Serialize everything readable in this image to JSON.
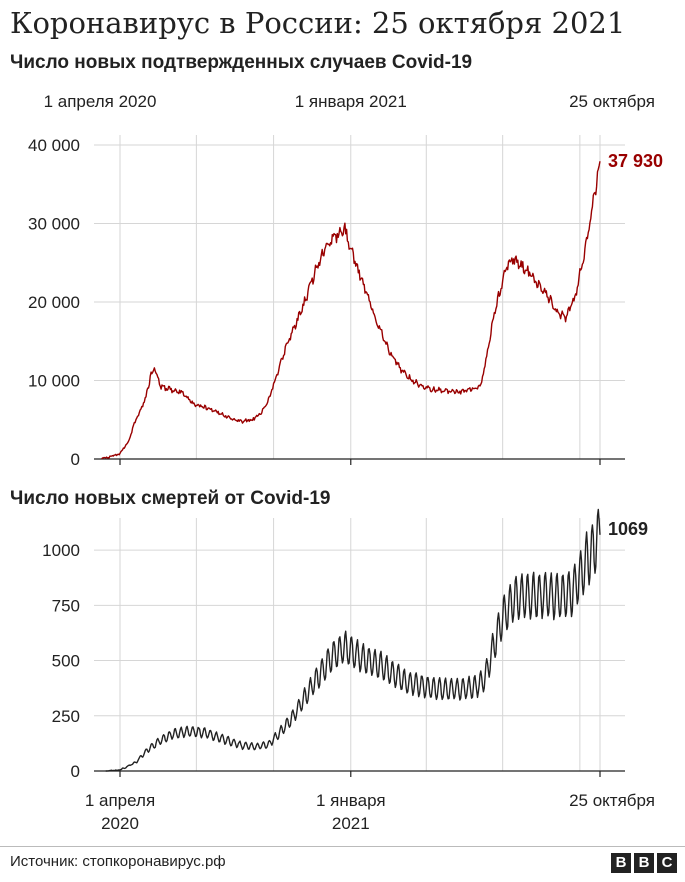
{
  "title": "Коронавирус в России: 25 октября 2021",
  "source": "Источник: стопкоронавирус.рф",
  "logo": "BBC",
  "chart_data": [
    {
      "type": "line",
      "title": "Число новых подтвержденных случаев Covid-19",
      "color": "#990000",
      "x_range": [
        "2020-03-01",
        "2021-10-25"
      ],
      "x_tick_labels": [
        {
          "date": "2020-04-01",
          "label": "1 апреля 2020"
        },
        {
          "date": "2021-01-01",
          "label": "1 января 2021"
        },
        {
          "date": "2021-10-25",
          "label": "25 октября"
        }
      ],
      "ylim": [
        0,
        40000
      ],
      "yticks": [
        0,
        10000,
        20000,
        30000,
        40000
      ],
      "ytick_labels": [
        "0",
        "10 000",
        "20 000",
        "30 000",
        "40 000"
      ],
      "grid": true,
      "series": [
        {
          "points": [
            [
              "2020-03-10",
              0
            ],
            [
              "2020-03-25",
              400
            ],
            [
              "2020-04-01",
              700
            ],
            [
              "2020-04-10",
              2000
            ],
            [
              "2020-04-20",
              5000
            ],
            [
              "2020-05-01",
              7500
            ],
            [
              "2020-05-08",
              10800
            ],
            [
              "2020-05-12",
              11600
            ],
            [
              "2020-05-20",
              9200
            ],
            [
              "2020-06-01",
              8800
            ],
            [
              "2020-06-15",
              8400
            ],
            [
              "2020-06-25",
              7200
            ],
            [
              "2020-07-10",
              6600
            ],
            [
              "2020-07-25",
              6000
            ],
            [
              "2020-08-10",
              5200
            ],
            [
              "2020-08-25",
              4800
            ],
            [
              "2020-09-05",
              5000
            ],
            [
              "2020-09-15",
              5700
            ],
            [
              "2020-09-25",
              7500
            ],
            [
              "2020-10-05",
              10800
            ],
            [
              "2020-10-15",
              14000
            ],
            [
              "2020-10-25",
              16500
            ],
            [
              "2020-11-05",
              19500
            ],
            [
              "2020-11-15",
              22500
            ],
            [
              "2020-11-25",
              25500
            ],
            [
              "2020-12-05",
              27500
            ],
            [
              "2020-12-15",
              28500
            ],
            [
              "2020-12-24",
              29500
            ],
            [
              "2021-01-01",
              27000
            ],
            [
              "2021-01-10",
              24000
            ],
            [
              "2021-01-20",
              21000
            ],
            [
              "2021-02-01",
              17500
            ],
            [
              "2021-02-15",
              14000
            ],
            [
              "2021-03-01",
              11500
            ],
            [
              "2021-03-15",
              10000
            ],
            [
              "2021-04-01",
              9000
            ],
            [
              "2021-04-20",
              8700
            ],
            [
              "2021-05-10",
              8500
            ],
            [
              "2021-05-25",
              8900
            ],
            [
              "2021-06-05",
              9500
            ],
            [
              "2021-06-12",
              13000
            ],
            [
              "2021-06-20",
              18000
            ],
            [
              "2021-06-28",
              21500
            ],
            [
              "2021-07-05",
              24500
            ],
            [
              "2021-07-12",
              25500
            ],
            [
              "2021-07-25",
              24500
            ],
            [
              "2021-08-10",
              22500
            ],
            [
              "2021-08-25",
              20500
            ],
            [
              "2021-09-05",
              18500
            ],
            [
              "2021-09-15",
              18000
            ],
            [
              "2021-09-25",
              20500
            ],
            [
              "2021-10-05",
              25500
            ],
            [
              "2021-10-15",
              31500
            ],
            [
              "2021-10-25",
              37930
            ]
          ]
        }
      ],
      "last_value_label": "37 930"
    },
    {
      "type": "line",
      "title": "Число новых смертей от Covid-19",
      "color": "#222222",
      "x_range": [
        "2020-03-01",
        "2021-10-25"
      ],
      "x_tick_labels": [
        {
          "date": "2020-04-01",
          "label": "1 апреля",
          "label2": "2020"
        },
        {
          "date": "2021-01-01",
          "label": "1 января",
          "label2": "2021"
        },
        {
          "date": "2021-10-25",
          "label": "25 октября",
          "label2": ""
        }
      ],
      "ylim": [
        0,
        1100
      ],
      "yticks": [
        0,
        250,
        500,
        750,
        1000
      ],
      "ytick_labels": [
        "0",
        "250",
        "500",
        "750",
        "1000"
      ],
      "grid": true,
      "series": [
        {
          "points": [
            [
              "2020-03-15",
              0
            ],
            [
              "2020-04-01",
              5
            ],
            [
              "2020-04-20",
              40
            ],
            [
              "2020-05-05",
              100
            ],
            [
              "2020-05-20",
              140
            ],
            [
              "2020-06-05",
              170
            ],
            [
              "2020-06-25",
              180
            ],
            [
              "2020-07-15",
              170
            ],
            [
              "2020-08-05",
              140
            ],
            [
              "2020-08-25",
              115
            ],
            [
              "2020-09-10",
              110
            ],
            [
              "2020-09-25",
              120
            ],
            [
              "2020-10-10",
              180
            ],
            [
              "2020-10-25",
              250
            ],
            [
              "2020-11-10",
              350
            ],
            [
              "2020-11-25",
              440
            ],
            [
              "2020-12-10",
              520
            ],
            [
              "2020-12-25",
              560
            ],
            [
              "2021-01-05",
              530
            ],
            [
              "2021-01-20",
              500
            ],
            [
              "2021-02-05",
              480
            ],
            [
              "2021-02-20",
              440
            ],
            [
              "2021-03-10",
              400
            ],
            [
              "2021-04-01",
              380
            ],
            [
              "2021-04-20",
              370
            ],
            [
              "2021-05-10",
              370
            ],
            [
              "2021-05-30",
              380
            ],
            [
              "2021-06-10",
              420
            ],
            [
              "2021-06-20",
              560
            ],
            [
              "2021-07-01",
              700
            ],
            [
              "2021-07-15",
              780
            ],
            [
              "2021-08-01",
              790
            ],
            [
              "2021-08-20",
              795
            ],
            [
              "2021-09-05",
              790
            ],
            [
              "2021-09-20",
              800
            ],
            [
              "2021-10-01",
              880
            ],
            [
              "2021-10-10",
              960
            ],
            [
              "2021-10-18",
              1010
            ],
            [
              "2021-10-25",
              1069
            ]
          ]
        }
      ],
      "last_value_label": "1069"
    }
  ]
}
